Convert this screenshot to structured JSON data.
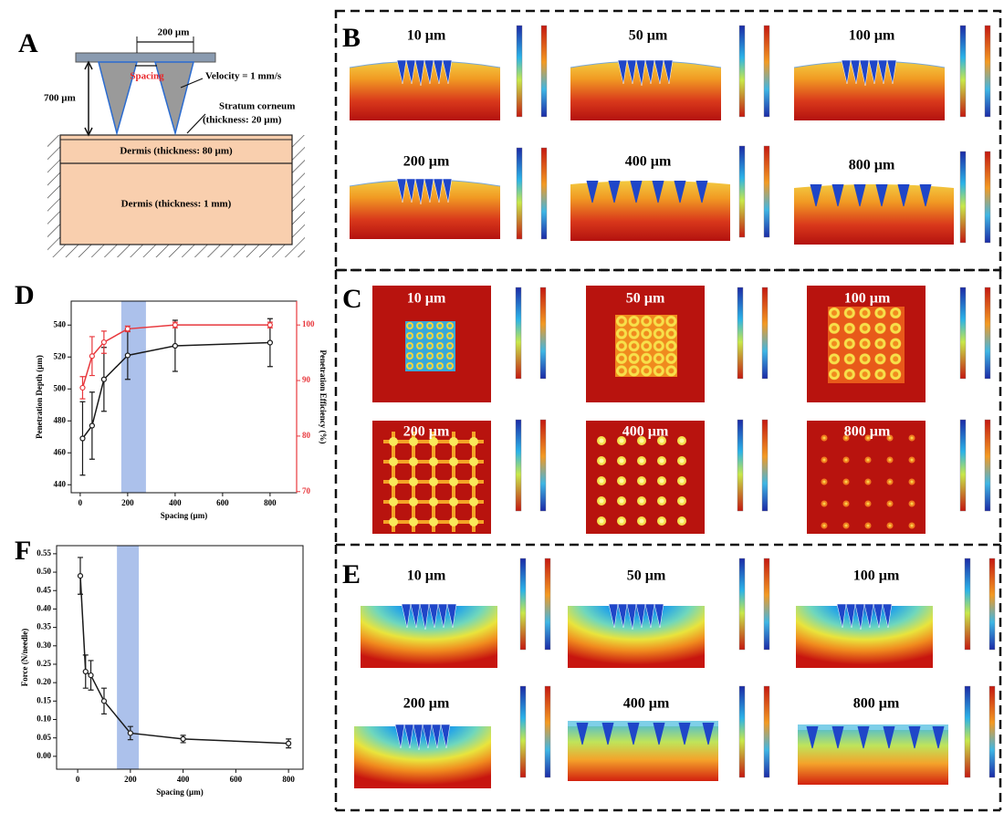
{
  "panel_letters": [
    "A",
    "B",
    "C",
    "D",
    "E",
    "F"
  ],
  "schematic": {
    "needle_spacing_dimension": "200 µm",
    "spacing": "Spacing",
    "velocity": "Velocity = 1 mm/s",
    "height": "700 µm",
    "stratum_corneum": "Stratum corneum",
    "stratum_thickness": "(thickness: 20 µm)",
    "dermis_upper": "Dermis (thickness: 80 µm)",
    "dermis_lower": "Dermis (thickness: 1 mm)"
  },
  "simulations": {
    "B": [
      "10 µm",
      "50 µm",
      "100 µm",
      "200 µm",
      "400 µm",
      "800 µm"
    ],
    "C": [
      "10 µm",
      "50 µm",
      "100 µm",
      "200 µm",
      "400 µm",
      "800 µm"
    ],
    "E": [
      "10 µm",
      "50 µm",
      "100 µm",
      "200 µm",
      "400 µm",
      "800 µm"
    ]
  },
  "chart_data": [
    {
      "type": "line",
      "x": [
        10,
        50,
        100,
        200,
        400,
        800
      ],
      "xlim": [
        -38,
        912
      ],
      "xticks": [
        0,
        200,
        400,
        600,
        800
      ],
      "ylim": [
        435,
        555
      ],
      "yticks": [
        440,
        460,
        480,
        500,
        520,
        540
      ],
      "y2lim": [
        69.8,
        104.3
      ],
      "y2ticks": [
        70,
        80,
        90,
        100
      ],
      "xlabel": "Spacing (µm)",
      "ylabel": "Penetration Depth (µm)",
      "y2label": "Penetration Efficiency (%)",
      "highlight": [
        173,
        277
      ],
      "highlight_color": "#9db6e8",
      "series": [
        {
          "color": "#1a1a1a",
          "values": [
            469,
            477,
            506,
            521,
            527,
            529
          ],
          "errors": [
            23,
            21,
            20,
            15,
            16,
            15
          ]
        },
        {
          "color": "#e8383d",
          "axis": "y2",
          "values": [
            88.7,
            94.4,
            96.9,
            99.3,
            100,
            100
          ],
          "errors": [
            2,
            3.5,
            2,
            0.5,
            0.5,
            0.5
          ]
        }
      ]
    },
    {
      "type": "line",
      "x": [
        10,
        30,
        50,
        100,
        200,
        400,
        800
      ],
      "xlim": [
        -80,
        855
      ],
      "xticks": [
        0,
        200,
        400,
        600,
        800
      ],
      "ylim": [
        -0.035,
        0.572
      ],
      "yticks": [
        {
          "value": 0,
          "label": "0.00"
        },
        0.05,
        {
          "value": 0.1,
          "label": "0.10"
        },
        0.15,
        {
          "value": 0.2,
          "label": "0.20"
        },
        0.25,
        {
          "value": 0.3,
          "label": "0.30"
        },
        0.35,
        {
          "value": 0.4,
          "label": "0.40"
        },
        0.45,
        {
          "value": 0.5,
          "label": "0.50"
        },
        0.55
      ],
      "xlabel": "Spacing (µm)",
      "ylabel": "Force (N/needle)",
      "highlight": [
        149,
        232
      ],
      "highlight_color": "#9db6e8",
      "series": [
        {
          "color": "#1a1a1a",
          "values": [
            0.49,
            0.23,
            0.22,
            0.15,
            0.063,
            0.047,
            0.035
          ],
          "errors": [
            0.05,
            0.045,
            0.04,
            0.035,
            0.018,
            0.01,
            0.012
          ]
        }
      ]
    }
  ]
}
